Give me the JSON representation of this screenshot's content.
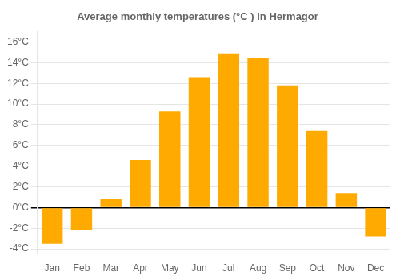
{
  "chart_data": {
    "type": "bar",
    "title": "Average monthly temperatures (°C ) in Hermagor",
    "categories": [
      "Jan",
      "Feb",
      "Mar",
      "Apr",
      "May",
      "Jun",
      "Jul",
      "Aug",
      "Sep",
      "Oct",
      "Nov",
      "Dec"
    ],
    "values": [
      -3.5,
      -2.2,
      0.8,
      4.6,
      9.3,
      12.6,
      14.9,
      14.5,
      11.8,
      7.4,
      1.4,
      -2.8
    ],
    "color": "#FFAA00",
    "ylim": [
      -4.5,
      17
    ],
    "yticks": [
      {
        "value": -4,
        "label": "-4°C"
      },
      {
        "value": -2,
        "label": "-2°C"
      },
      {
        "value": 0,
        "label": "0°C"
      },
      {
        "value": 2,
        "label": "2°C"
      },
      {
        "value": 4,
        "label": "4°C"
      },
      {
        "value": 6,
        "label": "6°C"
      },
      {
        "value": 8,
        "label": "8°C"
      },
      {
        "value": 10,
        "label": "10°C"
      },
      {
        "value": 12,
        "label": "12°C"
      },
      {
        "value": 14,
        "label": "14°C"
      },
      {
        "value": 16,
        "label": "16°C"
      }
    ],
    "grid": true
  }
}
